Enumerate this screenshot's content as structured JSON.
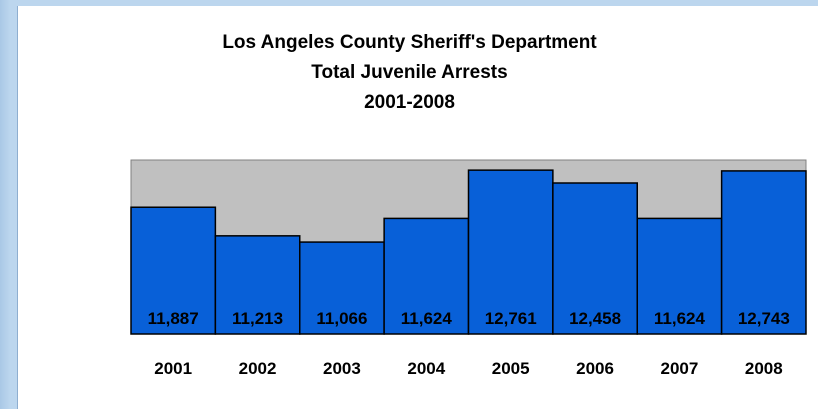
{
  "chart_data": {
    "type": "bar",
    "title": "Los Angeles County Sheriff's Department",
    "subtitle": "Total Juvenile Arrests",
    "subtitle2": "2001-2008",
    "categories": [
      "2001",
      "2002",
      "2003",
      "2004",
      "2005",
      "2006",
      "2007",
      "2008"
    ],
    "values": [
      11887,
      11213,
      11066,
      11624,
      12761,
      12458,
      11624,
      12743
    ],
    "value_labels": [
      "11,887",
      "11,213",
      "11,066",
      "11,624",
      "12,761",
      "12,458",
      "11,624",
      "12,743"
    ],
    "xlabel": "",
    "ylabel": "",
    "ylim": [
      8900,
      13000
    ],
    "grid": false,
    "legend": "none",
    "colors": {
      "bar": "#0860d8",
      "plot_background": "#c0c0c0",
      "page_background": "#bcd6ee"
    }
  }
}
